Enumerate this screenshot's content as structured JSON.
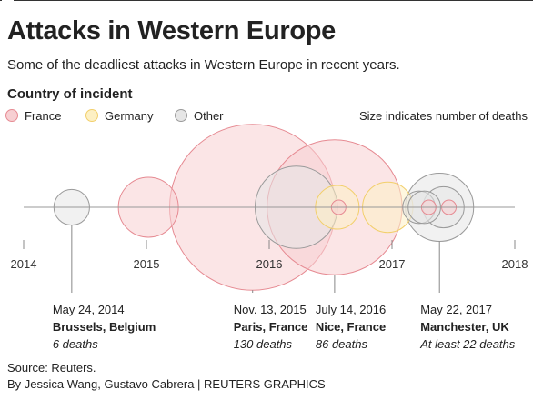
{
  "header": {
    "title": "Attacks in Western Europe",
    "subtitle": "Some of the deadliest attacks in Western Europe in recent years."
  },
  "legend": {
    "title": "Country of incident",
    "items": [
      {
        "label": "France",
        "fill": "#f7cfd2",
        "stroke": "#e68a92"
      },
      {
        "label": "Germany",
        "fill": "#fdf0c4",
        "stroke": "#f2cf6b"
      },
      {
        "label": "Other",
        "fill": "#e6e6e6",
        "stroke": "#9a9a9a"
      }
    ],
    "size_note": "Size indicates number of deaths"
  },
  "colors": {
    "France": {
      "fill": "#f7cfd2",
      "stroke": "#e68a92"
    },
    "Germany": {
      "fill": "#fdf0c4",
      "stroke": "#f2cf6b"
    },
    "Other": {
      "fill": "#e6e6e6",
      "stroke": "#9a9a9a"
    }
  },
  "chart_data": {
    "type": "scatter",
    "title": "Attacks in Western Europe",
    "subtitle": "Some of the deadliest attacks in Western Europe in recent years.",
    "xlabel": "",
    "ylabel": "",
    "x_ticks": [
      "2014",
      "2015",
      "2016",
      "2017",
      "2018"
    ],
    "x_range": [
      "2014-01-01",
      "2018-01-01"
    ],
    "size_encodes": "deaths",
    "points": [
      {
        "date": "2014-05-24",
        "country": "Other",
        "deaths": 6
      },
      {
        "date": "2015-01-07",
        "country": "France",
        "deaths": 17
      },
      {
        "date": "2015-11-13",
        "country": "France",
        "deaths": 130
      },
      {
        "date": "2016-03-22",
        "country": "Other",
        "deaths": 32
      },
      {
        "date": "2016-07-14",
        "country": "France",
        "deaths": 86
      },
      {
        "date": "2016-07-26",
        "country": "France",
        "deaths": 1
      },
      {
        "date": "2016-07-22",
        "country": "Germany",
        "deaths": 9
      },
      {
        "date": "2016-12-19",
        "country": "Germany",
        "deaths": 12
      },
      {
        "date": "2017-03-22",
        "country": "Other",
        "deaths": 5
      },
      {
        "date": "2017-04-07",
        "country": "Other",
        "deaths": 5
      },
      {
        "date": "2017-04-20",
        "country": "France",
        "deaths": 1
      },
      {
        "date": "2017-06-03",
        "country": "Other",
        "deaths": 8
      },
      {
        "date": "2017-05-22",
        "country": "Other",
        "deaths": 22
      },
      {
        "date": "2017-06-19",
        "country": "France",
        "deaths": 1
      }
    ],
    "annotations": [
      {
        "date": "2014-05-24",
        "date_label": "May 24, 2014",
        "place": "Brussels, Belgium",
        "deaths_label": "6 deaths"
      },
      {
        "date": "2015-11-13",
        "date_label": "Nov. 13, 2015",
        "place": "Paris, France",
        "deaths_label": "130 deaths"
      },
      {
        "date": "2016-07-14",
        "date_label": "July 14, 2016",
        "place": "Nice, France",
        "deaths_label": "86 deaths"
      },
      {
        "date": "2017-05-22",
        "date_label": "May 22, 2017",
        "place": "Manchester, UK",
        "deaths_label": "At least 22 deaths"
      }
    ]
  },
  "footer": {
    "source": "Source: Reuters.",
    "credit": "By Jessica Wang, Gustavo Cabrera | REUTERS GRAPHICS"
  }
}
